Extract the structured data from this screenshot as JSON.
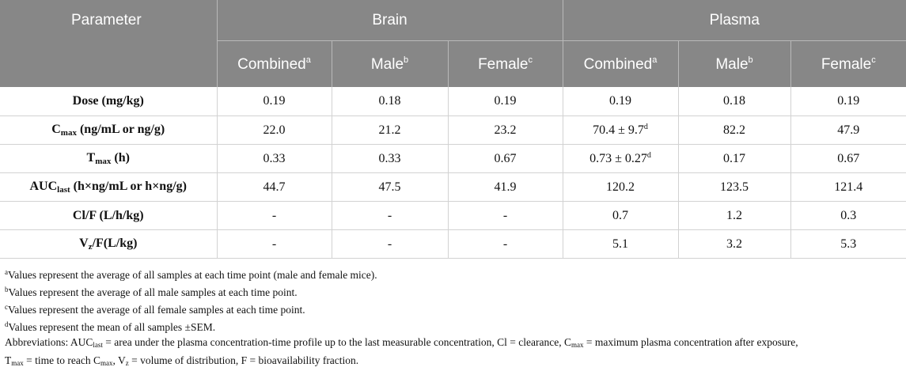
{
  "header": {
    "parameter": "Parameter",
    "brain": "Brain",
    "plasma": "Plasma",
    "combined": "Combined",
    "male": "Male",
    "female": "Female",
    "sup_a": "a",
    "sup_b": "b",
    "sup_c": "c"
  },
  "rows": {
    "dose": {
      "label": "Dose (mg/kg)",
      "values": [
        "0.19",
        "0.18",
        "0.19",
        "0.19",
        "0.18",
        "0.19"
      ]
    },
    "cmax": {
      "label_main": "C",
      "label_sub": "max",
      "label_rest": " (ng/mL or ng/g)",
      "values": [
        "22.0",
        "21.2",
        "23.2",
        "70.4 ± 9.7",
        "82.2",
        "47.9"
      ],
      "plasma_combined_sup": "d"
    },
    "tmax": {
      "label_main": "T",
      "label_sub": "max",
      "label_rest": " (h)",
      "values": [
        "0.33",
        "0.33",
        "0.67",
        "0.73 ± 0.27",
        "0.17",
        "0.67"
      ],
      "plasma_combined_sup": "d"
    },
    "auc": {
      "label_main": "AUC",
      "label_sub": "last",
      "label_rest": " (h×ng/mL or h×ng/g)",
      "values": [
        "44.7",
        "47.5",
        "41.9",
        "120.2",
        "123.5",
        "121.4"
      ]
    },
    "cl": {
      "label": "Cl/F (L/h/kg)",
      "values": [
        "-",
        "-",
        "-",
        "0.7",
        "1.2",
        "0.3"
      ]
    },
    "vz": {
      "label_main": "V",
      "label_sub": "z",
      "label_rest": "/F(L/kg)",
      "values": [
        "-",
        "-",
        "-",
        "5.1",
        "3.2",
        "5.3"
      ]
    }
  },
  "footnotes": {
    "a": {
      "sup": "a",
      "text": "Values represent the average of all samples at each time point (male and female mice)."
    },
    "b": {
      "sup": "b",
      "text": "Values represent the average of all male samples at each time point."
    },
    "c": {
      "sup": "c",
      "text": "Values represent the average of all female samples at each time point."
    },
    "d": {
      "sup": "d",
      "text": "Values represent the mean of all samples ±SEM."
    },
    "abbr": {
      "t1": "Abbreviations: AUC",
      "s1": "last",
      "t2": " = area under the plasma concentration-time profile up to the last measurable concentration, Cl = clearance, C",
      "s2": "max",
      "t3": " = maximum plasma concentration after exposure,",
      "t4": "T",
      "s3": "max",
      "t5": " = time to reach C",
      "s4": "max",
      "t6": ", V",
      "s5": "z",
      "t7": " = volume of distribution, F = bioavailability fraction."
    }
  }
}
